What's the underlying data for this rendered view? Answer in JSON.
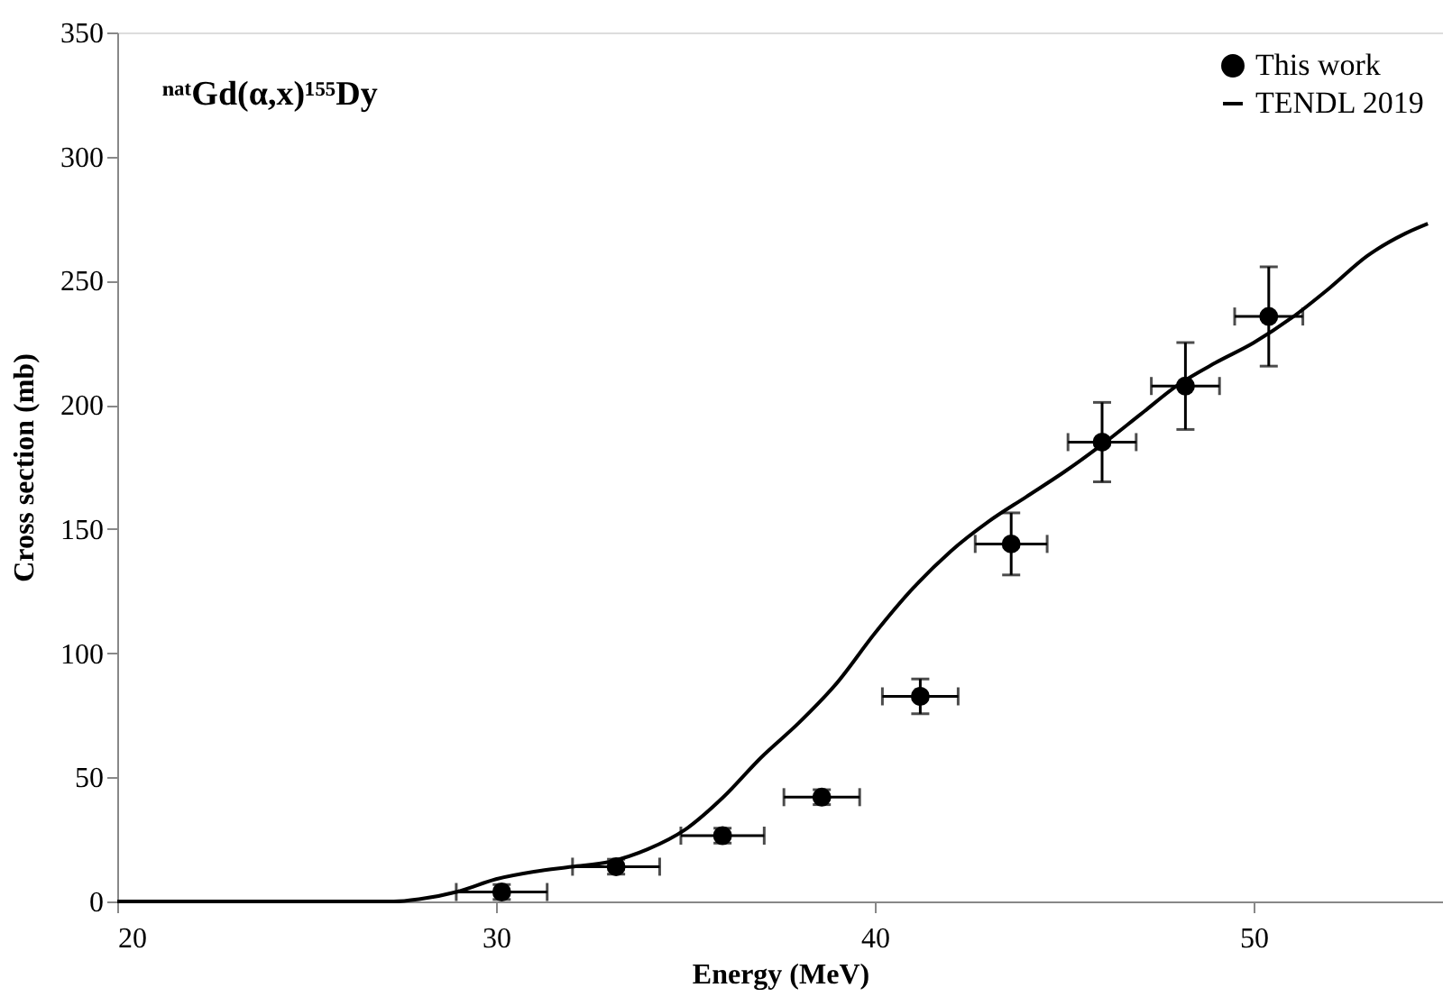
{
  "chart_data": {
    "type": "scatter",
    "xlabel": "Energy (MeV)",
    "ylabel": "Cross section (mb)",
    "annotations": [
      "ⁿᵃᵗGd(α,x)¹⁵⁵Dy"
    ],
    "xlim": [
      20,
      55
    ],
    "xticks": [
      20,
      30,
      40,
      50
    ],
    "ylim": [
      0,
      350
    ],
    "yticks": [
      0,
      50,
      100,
      150,
      200,
      250,
      300,
      350
    ],
    "grid": false,
    "legend": "top right",
    "series": [
      {
        "name": "This work",
        "color": "#000000",
        "marker": "circle",
        "x": [
          30.15,
          33.17,
          35.98,
          38.6,
          41.2,
          43.6,
          46.0,
          48.2,
          50.4
        ],
        "values": [
          3.8,
          14,
          26.5,
          42,
          82.6,
          144,
          185,
          207.6,
          235.6
        ],
        "errors": [
          3,
          3,
          3,
          3,
          7,
          12.5,
          16,
          17.5,
          20
        ],
        "xerrors": [
          1.2,
          1.15,
          1.1,
          1.0,
          1.0,
          0.95,
          0.9,
          0.9,
          0.9
        ]
      },
      {
        "name": "TENDL 2019",
        "type": "line",
        "color": "#000000",
        "line_style": "solid",
        "marker": "none",
        "x": [
          20,
          27.3,
          28,
          29,
          30,
          31,
          32,
          33,
          34,
          35,
          36,
          37,
          38,
          39,
          40,
          41,
          42,
          43,
          44,
          45,
          46,
          47,
          48,
          49,
          50,
          51,
          52,
          53,
          54,
          54.6
        ],
        "values": [
          0,
          0,
          1,
          4,
          9,
          12,
          14,
          16,
          21,
          29,
          42,
          58,
          72,
          88,
          108,
          126,
          141,
          153,
          163,
          173,
          184,
          196,
          208,
          217,
          225,
          235,
          247,
          260,
          269,
          273
        ]
      }
    ]
  }
}
